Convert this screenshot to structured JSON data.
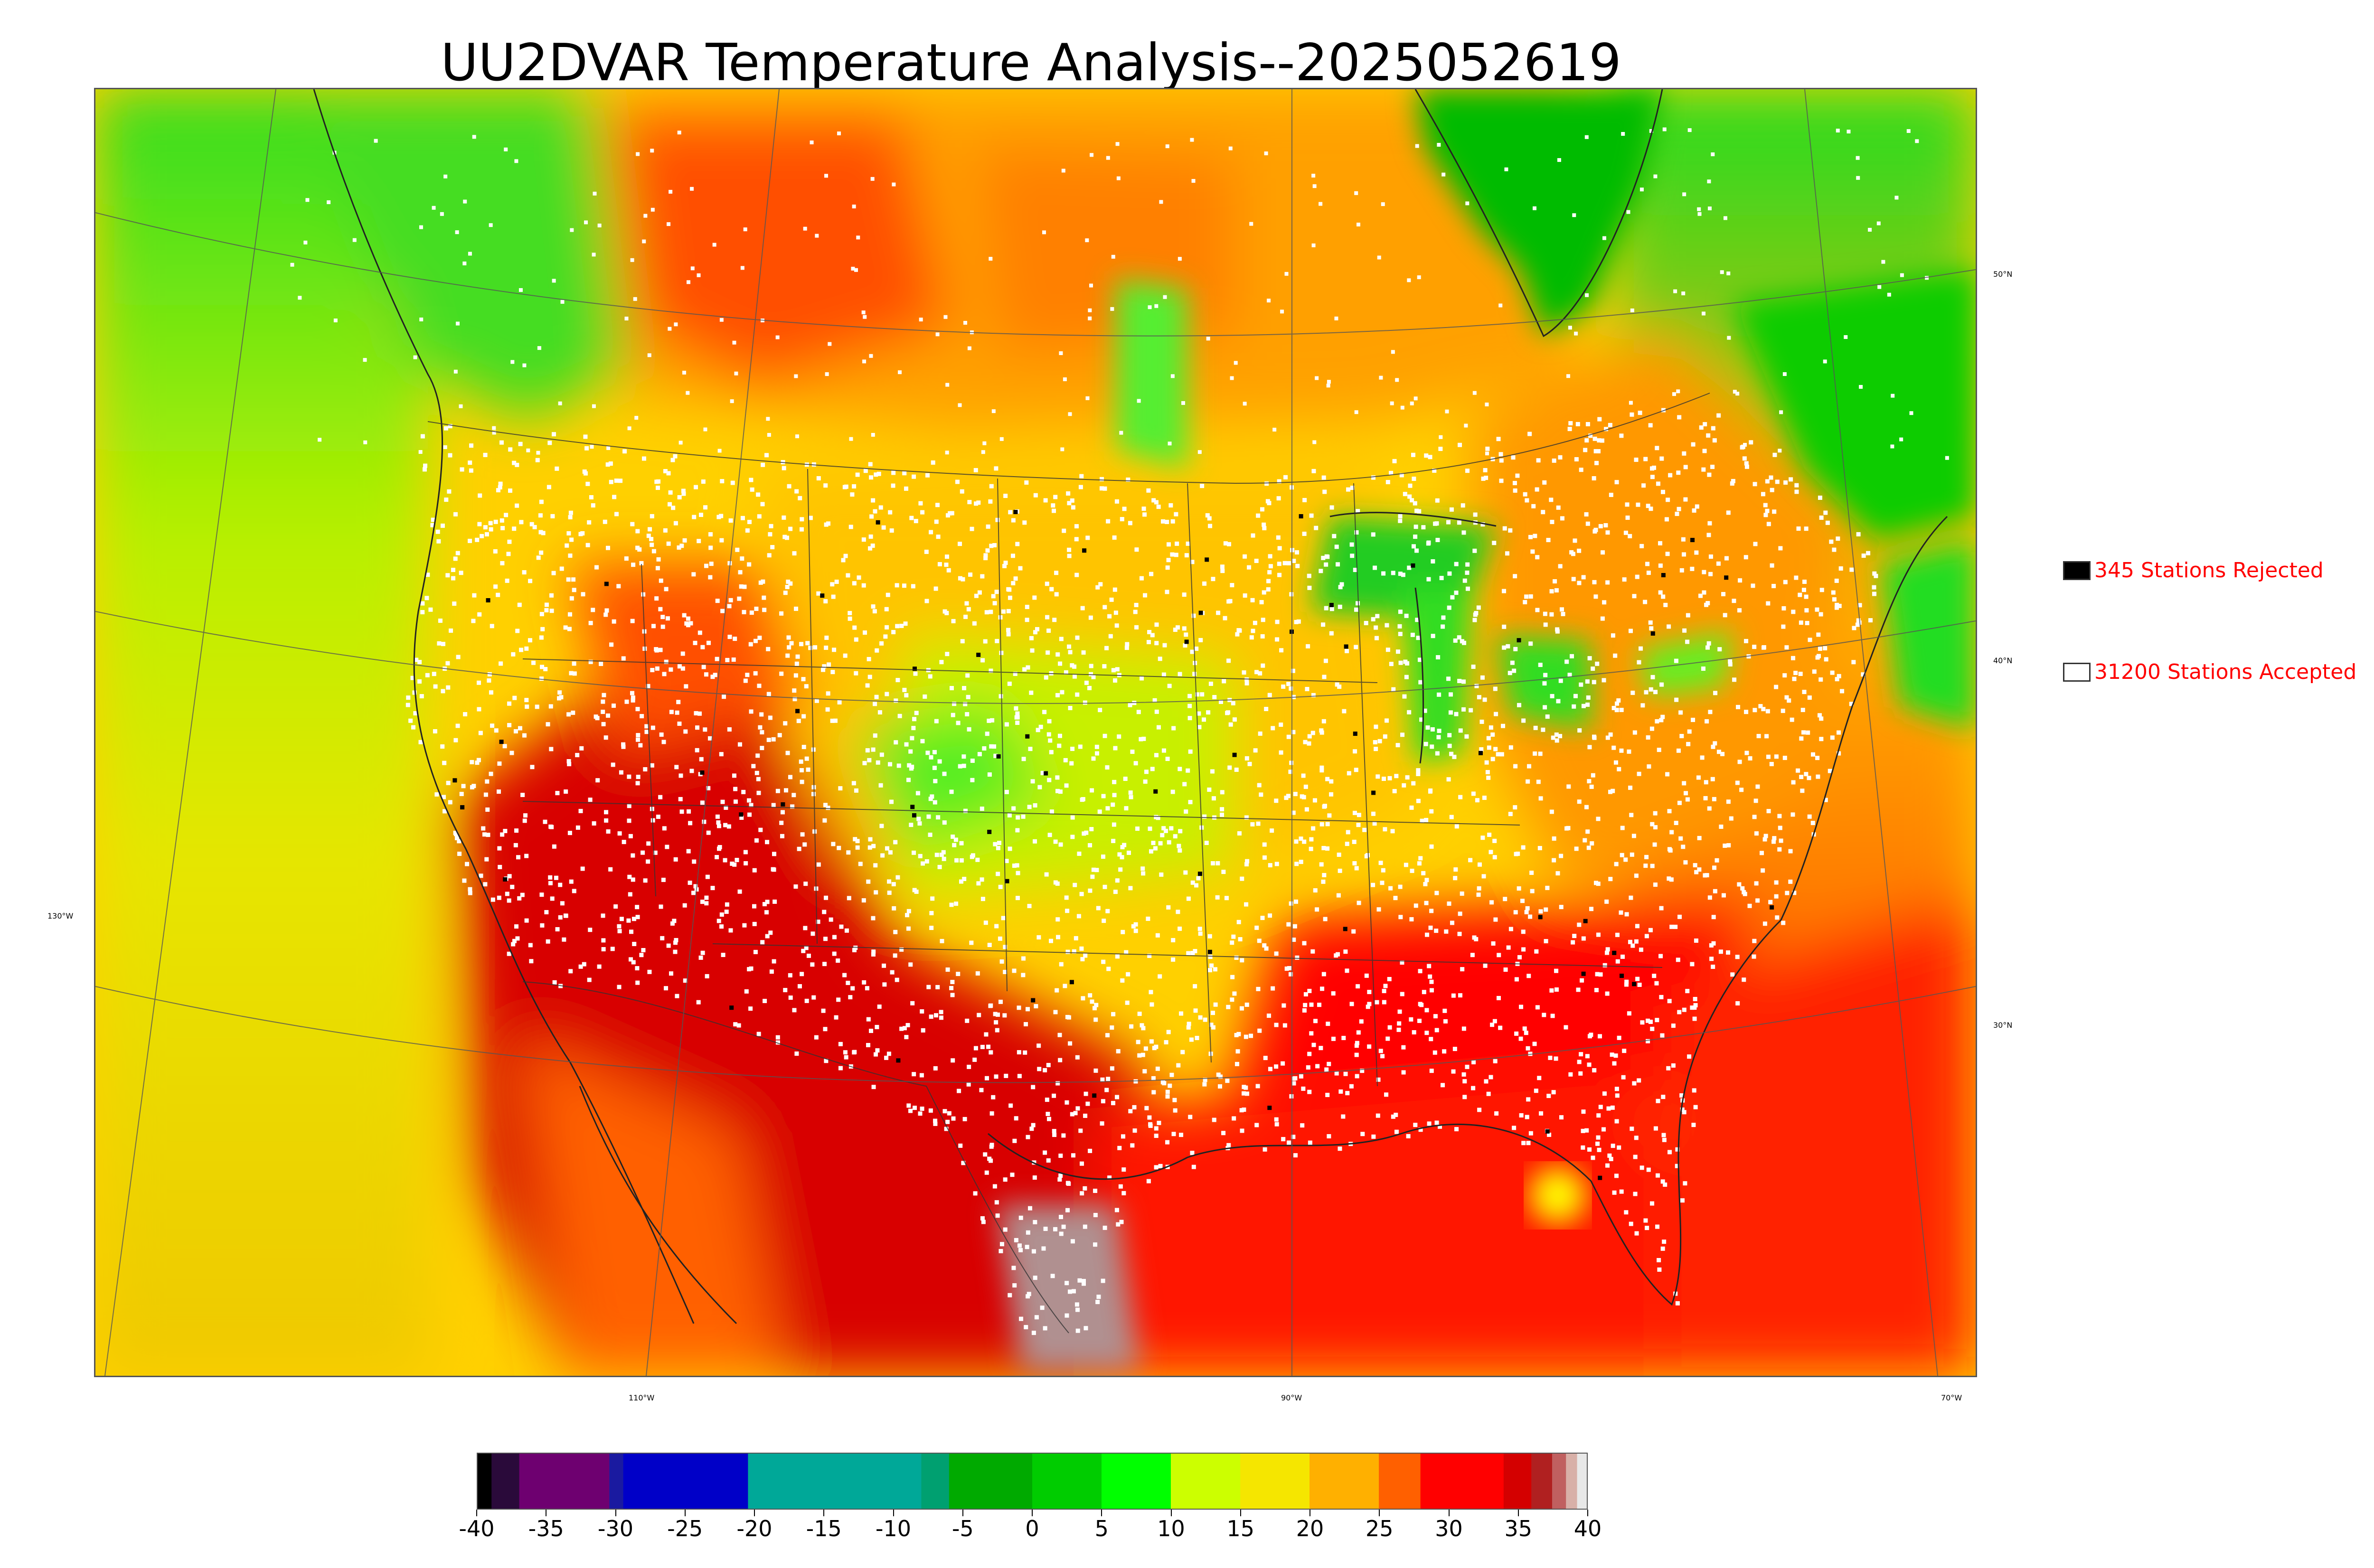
{
  "title": "UU2DVAR Temperature Analysis--2025052619",
  "graticule": {
    "lat_labels": [
      "50°N",
      "40°N",
      "30°N"
    ],
    "lon_labels": [
      "130°W",
      "110°W",
      "90°W",
      "70°W"
    ]
  },
  "legend": {
    "rejected": {
      "count": "345",
      "label": "345 Stations Rejected",
      "swatch_color": "#000000"
    },
    "accepted": {
      "count": "31200",
      "label": "31200 Stations Accepted",
      "swatch_color": "#ffffff"
    }
  },
  "colorbar": {
    "min": -40,
    "max": 40,
    "ticks": [
      "-40",
      "-35",
      "-30",
      "-25",
      "-20",
      "-15",
      "-10",
      "-5",
      "0",
      "5",
      "10",
      "15",
      "20",
      "25",
      "30",
      "35",
      "40"
    ],
    "units": "",
    "segments": [
      {
        "from": -40,
        "to": -39,
        "color": "#000000"
      },
      {
        "from": -39,
        "to": -37,
        "color": "#2a0a3a"
      },
      {
        "from": -37,
        "to": -30.5,
        "color": "#6e0070"
      },
      {
        "from": -30.5,
        "to": -29.5,
        "color": "#1a1aa0"
      },
      {
        "from": -29.5,
        "to": -20.5,
        "color": "#0000c8"
      },
      {
        "from": -20.5,
        "to": -8,
        "color": "#00a898"
      },
      {
        "from": -8,
        "to": -6,
        "color": "#00a070"
      },
      {
        "from": -6,
        "to": 0,
        "color": "#00aa00"
      },
      {
        "from": 0,
        "to": 5,
        "color": "#00cc00"
      },
      {
        "from": 5,
        "to": 10,
        "color": "#00ff00"
      },
      {
        "from": 10,
        "to": 15,
        "color": "#ccff00"
      },
      {
        "from": 15,
        "to": 20,
        "color": "#f5e600"
      },
      {
        "from": 20,
        "to": 25,
        "color": "#ffb000"
      },
      {
        "from": 25,
        "to": 28,
        "color": "#ff6000"
      },
      {
        "from": 28,
        "to": 34,
        "color": "#ff0000"
      },
      {
        "from": 34,
        "to": 36,
        "color": "#d40000"
      },
      {
        "from": 36,
        "to": 37.5,
        "color": "#b02020"
      },
      {
        "from": 37.5,
        "to": 38.5,
        "color": "#c06060"
      },
      {
        "from": 38.5,
        "to": 39.3,
        "color": "#d8b0a8"
      },
      {
        "from": 39.3,
        "to": 40,
        "color": "#e8e8e8"
      }
    ]
  },
  "colors": {
    "ocean_west": "#e6e600",
    "gulf": "#ff2200",
    "canada_warm": "#ffa000",
    "southwest_hot": "#d80000",
    "midwest": "#ffd000",
    "great_lakes": "#22cc22",
    "cool_green": "#33ee33"
  }
}
